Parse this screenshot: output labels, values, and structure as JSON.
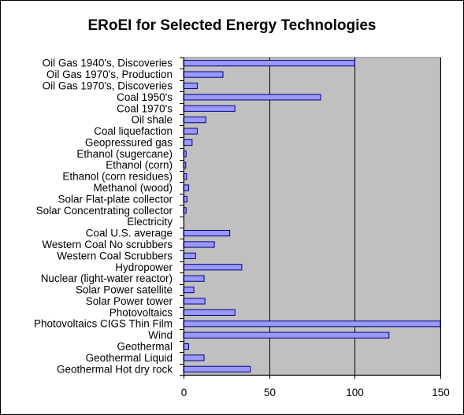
{
  "chart_data": {
    "type": "bar",
    "orientation": "horizontal",
    "title": "ERoEI for Selected Energy Technologies",
    "xlabel": "",
    "ylabel": "",
    "xlim": [
      0,
      150
    ],
    "x_ticks": [
      0,
      50,
      100,
      150
    ],
    "grid": "vertical major gridlines",
    "legend": "none",
    "plot_background": "#c0c0c0",
    "bar_color": "#9999ff",
    "bar_edge_color": "#000080",
    "categories": [
      "Oil Gas 1940's, Discoveries",
      "Oil Gas 1970's, Production",
      "Oil Gas 1970's, Discoveries",
      "Coal 1950's",
      "Coal 1970's",
      "Oil shale",
      "Coal liquefaction",
      "Geopressured gas",
      "Ethanol (sugercane)",
      "Ethanol (corn)",
      "Ethanol (corn residues)",
      "Methanol (wood)",
      "Solar Flat-plate collector",
      "Solar Concentrating collector",
      "Electricity",
      "Coal U.S. average",
      "Western Coal No scrubbers",
      "Western Coal Scrubbers",
      "Hydropower",
      "Nuclear (light-water reactor)",
      "Solar Power satellite",
      "Solar Power tower",
      "Photovoltaics",
      "Photovoltaics CIGS Thin Film",
      "Wind",
      "Geothermal",
      "Geothermal Liquid",
      "Geothermal Hot dry rock"
    ],
    "values": [
      100,
      23,
      8,
      80,
      30,
      13,
      8,
      5,
      1.5,
      1.3,
      1.8,
      3,
      2,
      1.5,
      0,
      27,
      18,
      7,
      34,
      12,
      6,
      12.5,
      30,
      150,
      120,
      3,
      12,
      39
    ]
  }
}
